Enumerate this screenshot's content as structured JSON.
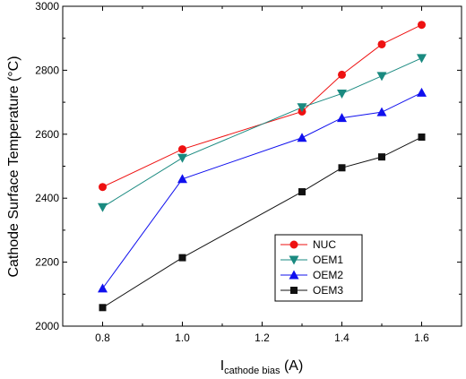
{
  "chart_data": {
    "type": "line",
    "xlabel": "I",
    "xlabel_sub": "cathode bias",
    "xlabel_unit": " (A)",
    "ylabel": "Cathode Surface Temperature (°C)",
    "xlim": [
      0.7,
      1.7
    ],
    "ylim": [
      2000,
      3000
    ],
    "x_ticks": [
      "0.8",
      "1.0",
      "1.2",
      "1.4",
      "1.6"
    ],
    "x_tick_values": [
      0.8,
      1.0,
      1.2,
      1.4,
      1.6
    ],
    "y_ticks": [
      "2000",
      "2200",
      "2400",
      "2600",
      "2800",
      "3000"
    ],
    "y_tick_values": [
      2000,
      2200,
      2400,
      2600,
      2800,
      3000
    ],
    "grid": false,
    "legend_position": "lower-right",
    "series": [
      {
        "name": "NUC",
        "color": "#ee1111",
        "marker": "circle",
        "x": [
          0.8,
          1.0,
          1.3,
          1.4,
          1.5,
          1.6
        ],
        "y": [
          2435,
          2553,
          2671,
          2786,
          2881,
          2942
        ]
      },
      {
        "name": "OEM1",
        "color": "#1a8a80",
        "marker": "triangle-down",
        "x": [
          0.8,
          1.0,
          1.3,
          1.4,
          1.5,
          1.6
        ],
        "y": [
          2372,
          2526,
          2684,
          2727,
          2782,
          2838
        ]
      },
      {
        "name": "OEM2",
        "color": "#1010ee",
        "marker": "triangle-up",
        "x": [
          0.8,
          1.0,
          1.3,
          1.4,
          1.5,
          1.6
        ],
        "y": [
          2118,
          2460,
          2589,
          2651,
          2669,
          2730
        ]
      },
      {
        "name": "OEM3",
        "color": "#111111",
        "marker": "square",
        "x": [
          0.8,
          1.0,
          1.3,
          1.4,
          1.5,
          1.6
        ],
        "y": [
          2058,
          2214,
          2420,
          2495,
          2529,
          2591
        ]
      }
    ]
  }
}
